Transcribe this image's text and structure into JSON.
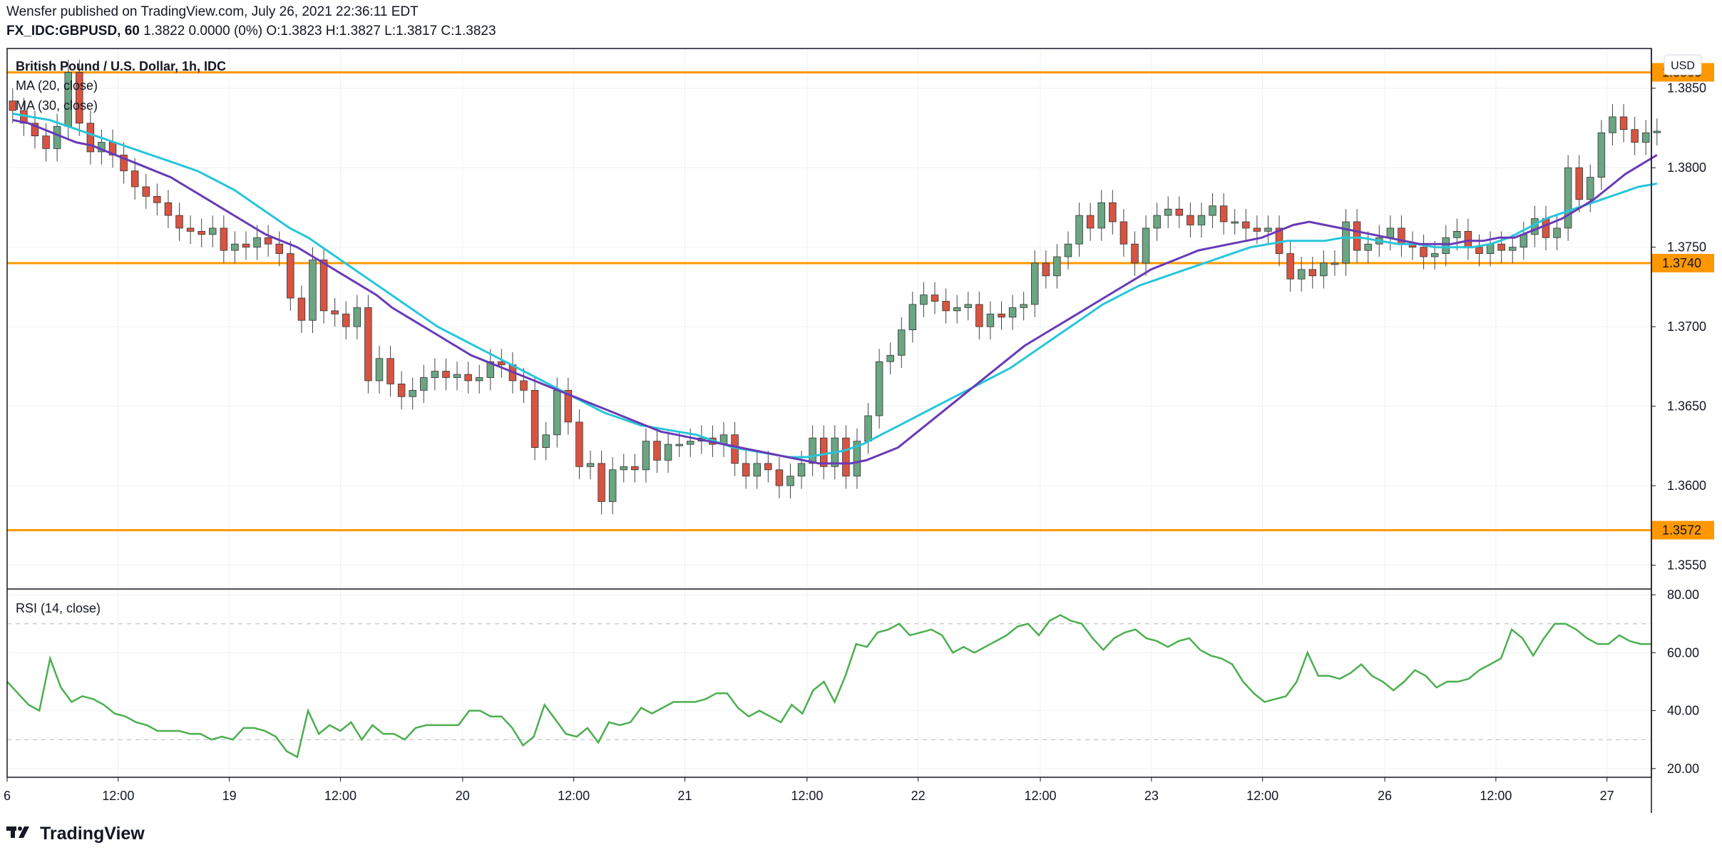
{
  "header": {
    "published_line": "Wensfer published on TradingView.com, July 26, 2021 22:36:11 EDT",
    "symbol_line": "FX_IDC:GBPUSD, 60",
    "quote_line": "1.3822 0.0000 (0%) O:1.3823 H:1.3827 L:1.3817 C:1.3823"
  },
  "legend": {
    "instrument": "British Pound / U.S. Dollar, 1h, IDC",
    "ma1": "MA (20, close)",
    "ma2": "MA (30, close)",
    "rsi": "RSI (14, close)"
  },
  "currency_label": "USD",
  "footer": {
    "brand": "TradingView"
  },
  "colors": {
    "up": "#6BA583",
    "down": "#D75442",
    "ma20": "#673AB7",
    "ma30": "#26C6DA",
    "rsi": "#4CAF50",
    "hline": "#FF9800",
    "grid": "#eef0f3",
    "axis": "#131722"
  },
  "chart_data": [
    {
      "type": "candlestick",
      "title": "British Pound / U.S. Dollar, 1h, IDC",
      "ylabel": "USD",
      "ylim": [
        1.3535,
        1.3875
      ],
      "yticks": [
        1.355,
        1.36,
        1.365,
        1.37,
        1.375,
        1.38,
        1.385
      ],
      "ytick_labels": [
        "1.3550",
        "1.3600",
        "1.3650",
        "1.3700",
        "1.3750",
        "1.3800",
        "1.3850"
      ],
      "xlim": [
        0,
        148
      ],
      "xticks": [
        {
          "x": 0,
          "label": "6"
        },
        {
          "x": 10,
          "label": "12:00"
        },
        {
          "x": 20,
          "label": "19"
        },
        {
          "x": 30,
          "label": "12:00"
        },
        {
          "x": 41,
          "label": "20"
        },
        {
          "x": 51,
          "label": "12:00"
        },
        {
          "x": 61,
          "label": "21"
        },
        {
          "x": 72,
          "label": "12:00"
        },
        {
          "x": 82,
          "label": "22"
        },
        {
          "x": 93,
          "label": "12:00"
        },
        {
          "x": 103,
          "label": "23"
        },
        {
          "x": 113,
          "label": "12:00"
        },
        {
          "x": 124,
          "label": "26"
        },
        {
          "x": 134,
          "label": "12:00"
        },
        {
          "x": 144,
          "label": "27"
        }
      ],
      "horizontal_lines": [
        {
          "value": 1.386,
          "label": "1.3860"
        },
        {
          "value": 1.374,
          "label": "1.3740"
        },
        {
          "value": 1.3572,
          "label": "1.3572"
        }
      ],
      "candles_close": [
        1.3836,
        1.3828,
        1.382,
        1.3812,
        1.3826,
        1.386,
        1.3828,
        1.381,
        1.3816,
        1.3808,
        1.3798,
        1.3788,
        1.3782,
        1.3778,
        1.377,
        1.3762,
        1.376,
        1.3758,
        1.3762,
        1.3748,
        1.3752,
        1.375,
        1.3756,
        1.3752,
        1.3746,
        1.3718,
        1.3704,
        1.3742,
        1.371,
        1.3708,
        1.37,
        1.3712,
        1.3666,
        1.368,
        1.3664,
        1.3656,
        1.366,
        1.3668,
        1.3672,
        1.3668,
        1.367,
        1.3666,
        1.3668,
        1.3678,
        1.3676,
        1.3666,
        1.366,
        1.3624,
        1.3632,
        1.366,
        1.364,
        1.3612,
        1.3614,
        1.359,
        1.361,
        1.3612,
        1.361,
        1.3628,
        1.3616,
        1.3626,
        1.3626,
        1.3628,
        1.363,
        1.3626,
        1.3632,
        1.3614,
        1.3606,
        1.3614,
        1.361,
        1.36,
        1.3606,
        1.3614,
        1.363,
        1.3612,
        1.363,
        1.3606,
        1.3628,
        1.3644,
        1.3678,
        1.3682,
        1.3698,
        1.3714,
        1.372,
        1.3716,
        1.371,
        1.3712,
        1.3714,
        1.37,
        1.3708,
        1.3706,
        1.3712,
        1.3714,
        1.374,
        1.3732,
        1.3744,
        1.3752,
        1.377,
        1.3762,
        1.3778,
        1.3766,
        1.3752,
        1.374,
        1.3762,
        1.377,
        1.3774,
        1.377,
        1.3764,
        1.377,
        1.3776,
        1.3766,
        1.3766,
        1.3762,
        1.376,
        1.3762,
        1.3746,
        1.373,
        1.3736,
        1.3732,
        1.374,
        1.374,
        1.3766,
        1.3748,
        1.3752,
        1.3756,
        1.3762,
        1.3752,
        1.375,
        1.3744,
        1.3746,
        1.3756,
        1.376,
        1.375,
        1.3746,
        1.3752,
        1.3748,
        1.375,
        1.3758,
        1.3768,
        1.3756,
        1.3762,
        1.38,
        1.378,
        1.3794,
        1.3822,
        1.3832,
        1.3824,
        1.3816,
        1.3822,
        1.3823
      ],
      "ma20": [
        1.383,
        1.3828,
        1.3824,
        1.382,
        1.3816,
        1.3814,
        1.381,
        1.3806,
        1.3802,
        1.3798,
        1.3794,
        1.3788,
        1.3782,
        1.3776,
        1.377,
        1.3764,
        1.3758,
        1.3754,
        1.375,
        1.3744,
        1.3738,
        1.3732,
        1.3726,
        1.372,
        1.3712,
        1.3706,
        1.37,
        1.3694,
        1.3688,
        1.3682,
        1.3678,
        1.3674,
        1.367,
        1.3666,
        1.3662,
        1.3658,
        1.3654,
        1.365,
        1.3646,
        1.3642,
        1.3638,
        1.3634,
        1.3632,
        1.363,
        1.3628,
        1.3626,
        1.3624,
        1.3622,
        1.362,
        1.3618,
        1.3616,
        1.3614,
        1.3614,
        1.3614,
        1.3616,
        1.362,
        1.3624,
        1.3632,
        1.364,
        1.3648,
        1.3656,
        1.3664,
        1.3672,
        1.368,
        1.3688,
        1.3694,
        1.37,
        1.3706,
        1.3712,
        1.3718,
        1.3724,
        1.373,
        1.3736,
        1.374,
        1.3744,
        1.3748,
        1.375,
        1.3752,
        1.3754,
        1.3756,
        1.376,
        1.3764,
        1.3766,
        1.3764,
        1.3762,
        1.376,
        1.3758,
        1.3756,
        1.3754,
        1.3752,
        1.3752,
        1.3752,
        1.3754,
        1.3754,
        1.3756,
        1.3756,
        1.376,
        1.3764,
        1.3768,
        1.3774,
        1.378,
        1.3788,
        1.3796,
        1.3802,
        1.3808
      ],
      "ma30": [
        1.3834,
        1.3832,
        1.383,
        1.3826,
        1.3822,
        1.3818,
        1.3814,
        1.381,
        1.3806,
        1.3802,
        1.3798,
        1.3792,
        1.3786,
        1.3778,
        1.377,
        1.3762,
        1.3756,
        1.3748,
        1.374,
        1.3732,
        1.3724,
        1.3716,
        1.3708,
        1.37,
        1.3694,
        1.3688,
        1.3682,
        1.3676,
        1.367,
        1.3664,
        1.3658,
        1.3652,
        1.3646,
        1.3642,
        1.3638,
        1.3636,
        1.3634,
        1.3632,
        1.3628,
        1.3624,
        1.3622,
        1.362,
        1.3618,
        1.3618,
        1.362,
        1.3622,
        1.3626,
        1.3632,
        1.3638,
        1.3644,
        1.365,
        1.3656,
        1.3662,
        1.3668,
        1.3674,
        1.3682,
        1.369,
        1.3698,
        1.3706,
        1.3714,
        1.372,
        1.3726,
        1.373,
        1.3734,
        1.3738,
        1.3742,
        1.3746,
        1.375,
        1.3752,
        1.3754,
        1.3754,
        1.3754,
        1.3756,
        1.3756,
        1.3754,
        1.3752,
        1.3752,
        1.375,
        1.375,
        1.375,
        1.3752,
        1.3756,
        1.3762,
        1.3768,
        1.3772,
        1.3776,
        1.378,
        1.3784,
        1.3788,
        1.379
      ]
    },
    {
      "type": "line",
      "title": "RSI (14, close)",
      "ylim": [
        17,
        81
      ],
      "yticks": [
        20,
        40,
        60,
        80
      ],
      "ytick_labels": [
        "20.00",
        "40.00",
        "60.00",
        "80.00"
      ],
      "levels": [
        30,
        70
      ],
      "series": [
        {
          "values": [
            50,
            46,
            42,
            40,
            58,
            48,
            43,
            45,
            44,
            42,
            39,
            38,
            36,
            35,
            33,
            33,
            33,
            32,
            32,
            30,
            31,
            30,
            34,
            34,
            33,
            31,
            26,
            24,
            40,
            32,
            35,
            33,
            36,
            30,
            35,
            32,
            32,
            30,
            34,
            35,
            35,
            35,
            35,
            40,
            40,
            38,
            38,
            34,
            28,
            31,
            42,
            37,
            32,
            31,
            34,
            29,
            36,
            35,
            36,
            41,
            39,
            41,
            43,
            43,
            43,
            44,
            46,
            46,
            41,
            38,
            40,
            38,
            36,
            42,
            39,
            47,
            50,
            43,
            52,
            63,
            62,
            67,
            68,
            70,
            66,
            67,
            68,
            66,
            60,
            62,
            60,
            62,
            64,
            66,
            69,
            70,
            66,
            71,
            73,
            71,
            70,
            65,
            61,
            65,
            67,
            68,
            65,
            64,
            62,
            64,
            65,
            61,
            59,
            58,
            56,
            50,
            46,
            43,
            44,
            45,
            50,
            60,
            52,
            52,
            51,
            53,
            56,
            52,
            50,
            47,
            50,
            54,
            52,
            48,
            50,
            50,
            51,
            54,
            56,
            58,
            68,
            65,
            59,
            65,
            70,
            70,
            68,
            65,
            63,
            63,
            66,
            64,
            63,
            63
          ]
        }
      ],
      "xticks_shared": true
    }
  ]
}
